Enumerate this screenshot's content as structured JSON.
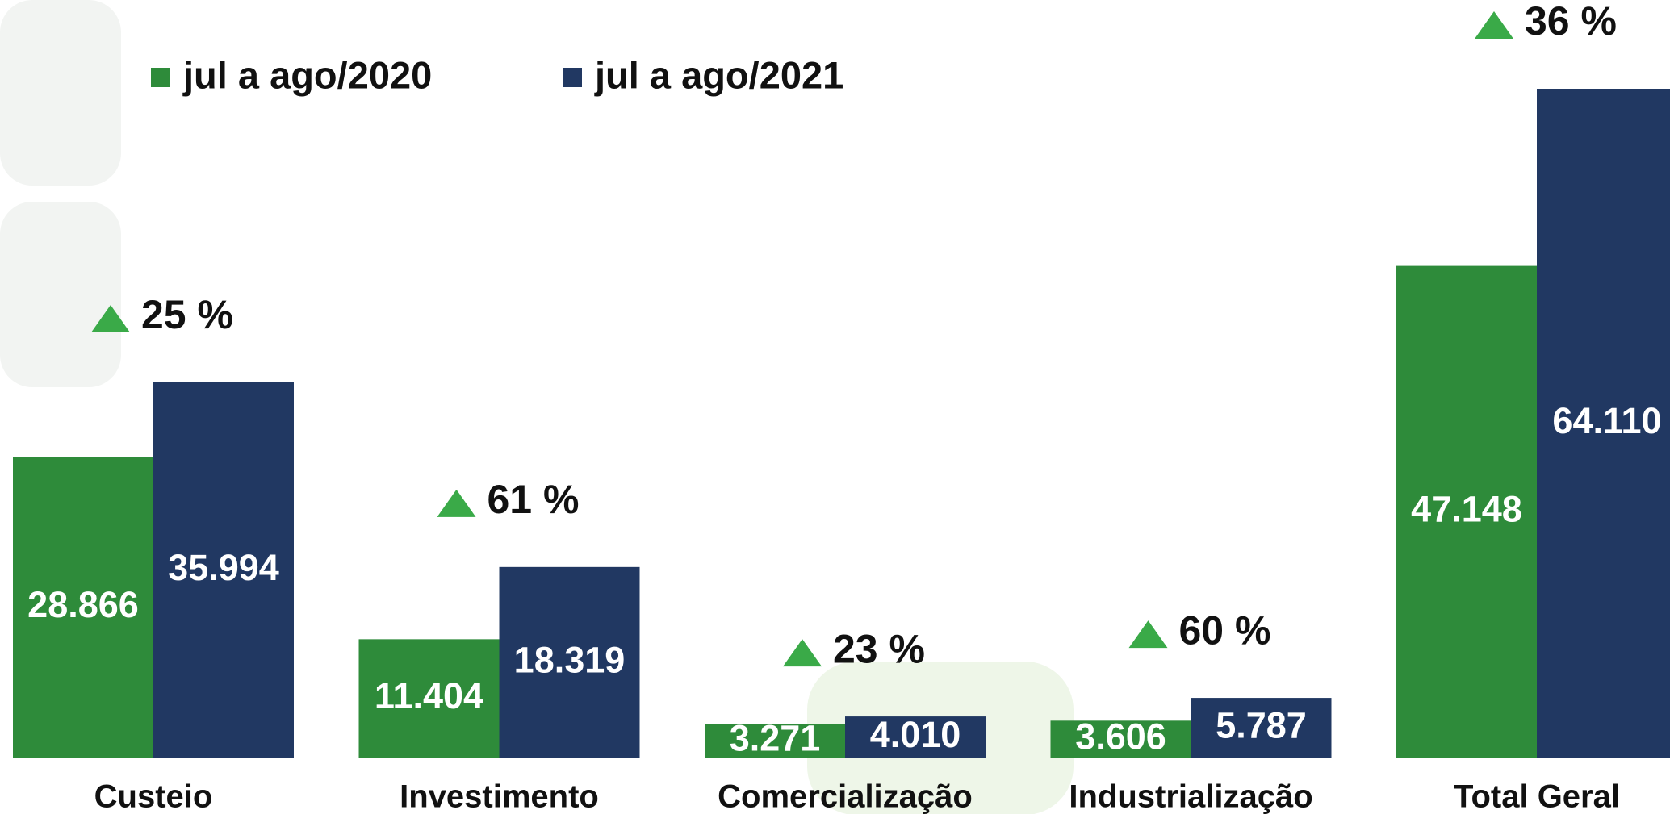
{
  "chart_data": {
    "type": "bar",
    "categories": [
      "Custeio",
      "Investimento",
      "Comercialização",
      "Industrialização",
      "Total Geral"
    ],
    "series": [
      {
        "name": "jul a ago/2020",
        "color": "#2e8b3a",
        "values": [
          28866,
          11404,
          3271,
          3606,
          47148
        ],
        "value_labels": [
          "28.866",
          "11.404",
          "3.271",
          "3.606",
          "47.148"
        ]
      },
      {
        "name": "jul a ago/2021",
        "color": "#213862",
        "values": [
          35994,
          18319,
          4010,
          5787,
          64110
        ],
        "value_labels": [
          "35.994",
          "18.319",
          "4.010",
          "5.787",
          "64.110"
        ]
      }
    ],
    "change_values": [
      25,
      61,
      23,
      60,
      36
    ],
    "change_labels": [
      "25 %",
      "61 %",
      "23 %",
      "60 %",
      "36 %"
    ],
    "change_color": "#3aaa48"
  }
}
